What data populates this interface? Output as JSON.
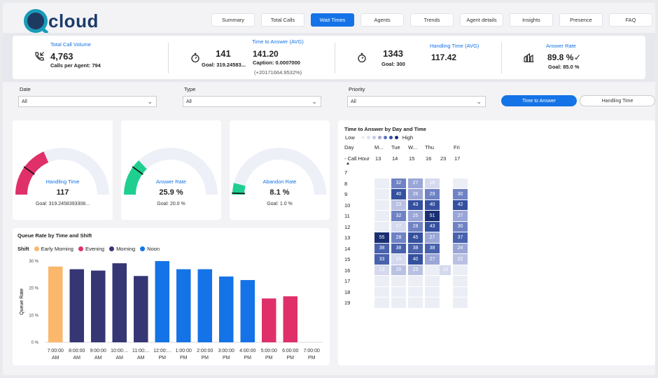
{
  "app": {
    "logo_text": "cloud"
  },
  "tabs": [
    {
      "label": "Summary",
      "active": false
    },
    {
      "label": "Total Calls",
      "active": false
    },
    {
      "label": "Wait Times",
      "active": true
    },
    {
      "label": "Agents",
      "active": false
    },
    {
      "label": "Trends",
      "active": false
    },
    {
      "label": "Agent details",
      "active": false
    },
    {
      "label": "Insights",
      "active": false
    },
    {
      "label": "Presence",
      "active": false
    },
    {
      "label": "FAQ",
      "active": false
    }
  ],
  "kpis": {
    "total_call_volume": {
      "title": "Total Call Volume",
      "value": "4,763",
      "sub": "Calls per Agent: 794",
      "icon": "phone-incoming-icon"
    },
    "time_to_answer": {
      "title": "Time to Answer (AVG)",
      "value": "141",
      "goal": "Goal: 319.24583...",
      "avg": "141.20",
      "caption": "Caption: 0.0007000",
      "delta": "(+20171664.9532%)",
      "icon": "stopwatch-icon"
    },
    "handling_time": {
      "title": "Handling Time (AVG)",
      "value": "1343",
      "goal": "Goal: 300",
      "avg": "117.42",
      "icon": "stopwatch-icon"
    },
    "answer_rate": {
      "title": "Answer Rate",
      "value": "89.8 %",
      "check": "✓",
      "goal": "Goal: 85.0 %",
      "icon": "call-center-icon"
    }
  },
  "filters": {
    "date": {
      "label": "Date",
      "value": "All"
    },
    "type": {
      "label": "Type",
      "value": "All"
    },
    "priority": {
      "label": "Priority",
      "value": "All"
    },
    "buttons": {
      "time_to_answer": "Time to Answer",
      "handling_time": "Handling Time"
    }
  },
  "gauges": [
    {
      "title": "Handling Time",
      "value": "117",
      "goal": "Goal: 319.2458393308...",
      "fraction": 0.37,
      "goal_fraction": 0.2,
      "color": "#e0306a"
    },
    {
      "title": "Answer Rate",
      "value": "25.9 %",
      "goal": "Goal: 20.0 %",
      "fraction": 0.26,
      "goal_fraction": 0.2,
      "color": "#1fcf8f"
    },
    {
      "title": "Abandon Rate",
      "value": "8.1 %",
      "goal": "Goal: 1.0 %",
      "fraction": 0.08,
      "goal_fraction": 0.01,
      "color": "#1fcf8f"
    }
  ],
  "queue_chart": {
    "title": "Queue Rate by Time and Shift",
    "legend_label": "Shift",
    "ylabel": "Queue Rate",
    "shifts": [
      {
        "name": "Early Morning",
        "color": "#fbb76b"
      },
      {
        "name": "Evening",
        "color": "#e0306a"
      },
      {
        "name": "Morning",
        "color": "#363675"
      },
      {
        "name": "Noon",
        "color": "#1473e6"
      }
    ]
  },
  "chart_data": {
    "type": "bar",
    "title": "Queue Rate by Time and Shift",
    "xlabel": "",
    "ylabel": "Queue Rate",
    "ylim": [
      0,
      30
    ],
    "yticks": [
      "0 %",
      "10 %",
      "20 %",
      "30 %"
    ],
    "categories": [
      [
        "7:00:00",
        "AM"
      ],
      [
        "8:00:00",
        "AM"
      ],
      [
        "9:00:00",
        "AM"
      ],
      [
        "10:00:...",
        "AM"
      ],
      [
        "11:00:...",
        "AM"
      ],
      [
        "12:00:...",
        "PM"
      ],
      [
        "1:00:00",
        "PM"
      ],
      [
        "2:00:00",
        "PM"
      ],
      [
        "3:00:00",
        "PM"
      ],
      [
        "4:00:00",
        "PM"
      ],
      [
        "5:00:00",
        "PM"
      ],
      [
        "6:00:00",
        "PM"
      ],
      [
        "7:00:00",
        "PM"
      ]
    ],
    "values": [
      28.0,
      27.0,
      26.5,
      29.2,
      24.5,
      30.0,
      27.0,
      27.0,
      24.3,
      23.0,
      16.2,
      17.0,
      0
    ],
    "shift": [
      "Early Morning",
      "Morning",
      "Morning",
      "Morning",
      "Morning",
      "Noon",
      "Noon",
      "Noon",
      "Noon",
      "Noon",
      "Evening",
      "Evening",
      "Evening"
    ],
    "grid": false,
    "legend": "top-left"
  },
  "heatmap": {
    "title": "Time to Answer by Day and Time",
    "legend_low": "Low",
    "legend_high": "High",
    "day_label": "Day",
    "call_hour_label": "- Call Hour",
    "days": [
      "M...",
      "Tue",
      "W...",
      "Thu",
      "",
      "Fri"
    ],
    "hours": [
      "13",
      "14",
      "15",
      "16",
      "23",
      "17"
    ],
    "rows": [
      "7",
      "8",
      "9",
      "10",
      "11",
      "12",
      "13",
      "14",
      "15",
      "16",
      "17",
      "18",
      "19"
    ],
    "cells": [
      [
        null,
        null,
        null,
        null,
        null,
        null
      ],
      [
        "",
        "32",
        "27",
        "16",
        "",
        ""
      ],
      [
        "",
        "40",
        "26",
        "29",
        "",
        "30"
      ],
      [
        "",
        "23",
        "43",
        "40",
        "",
        "42"
      ],
      [
        "",
        "32",
        "25",
        "51",
        "",
        "27"
      ],
      [
        "",
        "17",
        "28",
        "43",
        "",
        "30"
      ],
      [
        "55",
        "28",
        "45",
        "27",
        "",
        "37"
      ],
      [
        "38",
        "38",
        "38",
        "38",
        "",
        "24"
      ],
      [
        "33",
        "15",
        "40",
        "27",
        "",
        "22"
      ],
      [
        "13",
        "20",
        "23",
        "",
        "13",
        ""
      ],
      [
        "",
        "",
        "",
        "",
        "",
        ""
      ],
      [
        "",
        "",
        "",
        "",
        "",
        ""
      ],
      [
        "",
        "",
        "",
        "",
        "",
        ""
      ]
    ]
  }
}
